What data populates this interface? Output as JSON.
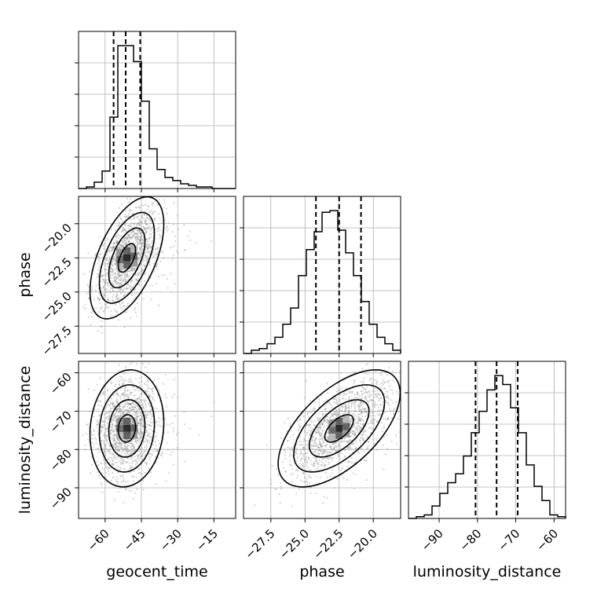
{
  "chart_data": {
    "type": "corner",
    "title": "",
    "parameters": [
      "geocent_time",
      "phase",
      "luminosity_distance"
    ],
    "grid": true,
    "colors": {
      "line": "#000000",
      "points": "#888888",
      "grid": "#b0b0b0"
    },
    "axes": {
      "geocent_time": {
        "label": "geocent_time",
        "range": [
          -71,
          -6
        ],
        "ticks": [
          -60,
          -45,
          -30,
          -15
        ],
        "tick_labels": [
          "−60",
          "−45",
          "−30",
          "−15"
        ],
        "quantiles": [
          -56.5,
          -51.5,
          -45.5
        ]
      },
      "phase": {
        "label": "phase",
        "range": [
          -29.5,
          -18.0
        ],
        "ticks": [
          -27.5,
          -25.0,
          -22.5,
          -20.0
        ],
        "tick_labels": [
          "−27.5",
          "−25.0",
          "−22.5",
          "−20.0"
        ],
        "quantiles": [
          -24.2,
          -22.5,
          -20.9
        ]
      },
      "luminosity_distance": {
        "label": "luminosity_distance",
        "range": [
          -98,
          -57
        ],
        "ticks": [
          -90,
          -80,
          -70,
          -60
        ],
        "tick_labels": [
          "−90",
          "−80",
          "−70",
          "−60"
        ],
        "quantiles": [
          -80.5,
          -75.0,
          -69.5
        ]
      }
    },
    "histograms": {
      "geocent_time": {
        "bin_edges": [
          -71,
          -67.75,
          -64.5,
          -61.25,
          -58,
          -54.75,
          -51.5,
          -48.25,
          -45,
          -41.75,
          -38.5,
          -35.25,
          -32,
          -28.75,
          -25.5,
          -22.25,
          -19,
          -15.75,
          -12.5,
          -9.25,
          -6
        ],
        "counts": [
          0,
          1,
          4,
          11,
          45,
          90,
          90,
          80,
          55,
          25,
          12,
          7,
          5,
          3,
          2,
          1,
          1,
          0,
          0,
          0
        ]
      },
      "phase": {
        "bin_edges": [
          -29.5,
          -28.925,
          -28.35,
          -27.775,
          -27.2,
          -26.625,
          -26.05,
          -25.475,
          -24.9,
          -24.325,
          -23.75,
          -23.175,
          -22.6,
          -22.025,
          -21.45,
          -20.875,
          -20.3,
          -19.725,
          -19.15,
          -18.575,
          -18.0
        ],
        "counts": [
          0,
          2,
          3,
          6,
          10,
          18,
          28,
          48,
          64,
          75,
          87,
          88,
          76,
          62,
          48,
          32,
          18,
          10,
          6,
          2
        ]
      },
      "luminosity_distance": {
        "bin_edges": [
          -98,
          -95.95,
          -93.9,
          -91.85,
          -89.8,
          -87.75,
          -85.7,
          -83.65,
          -81.6,
          -79.55,
          -77.5,
          -75.45,
          -73.4,
          -71.35,
          -69.3,
          -67.25,
          -65.2,
          -63.15,
          -61.1,
          -59.05,
          -57
        ],
        "counts": [
          0,
          1,
          2,
          7,
          14,
          20,
          25,
          35,
          48,
          60,
          72,
          80,
          75,
          62,
          48,
          30,
          18,
          10,
          2,
          1
        ]
      }
    },
    "scatter": {
      "correlations": {
        "geocent_time|phase": 0.55,
        "geocent_time|luminosity_distance": 0.1,
        "phase|luminosity_distance": 0.6
      },
      "center": {
        "geocent_time": -51,
        "phase": -22.5,
        "luminosity_distance": -74.5
      },
      "spread": {
        "geocent_time": 6.5,
        "phase": 1.9,
        "luminosity_distance": 6.5
      }
    }
  }
}
